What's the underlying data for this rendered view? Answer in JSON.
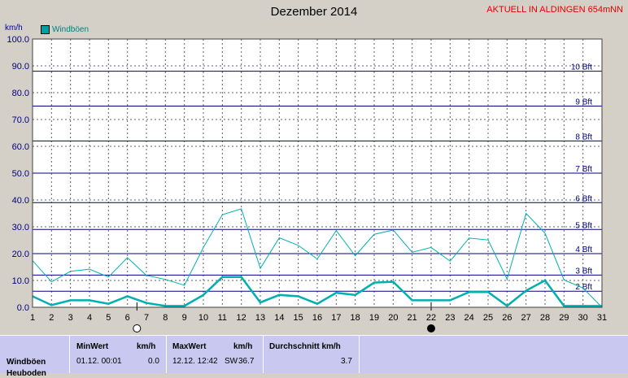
{
  "title": "Dezember 2014",
  "station_label": "AKTUELL IN ALDINGEN 654mNN",
  "unit_label": "km/h",
  "legend_label": "Windböen",
  "stats": {
    "row_label": "Windböen",
    "row_label_2": "Heuboden",
    "min_header": "MinWert",
    "min_unit": "km/h",
    "min_date": "01.12.  00:01",
    "min_value": "0.0",
    "max_header": "MaxWert",
    "max_unit": "km/h",
    "max_date": "12.12.  12:42",
    "max_dir": "SW",
    "max_value": "36.7",
    "avg_header": "Durchschnitt km/h",
    "avg_value": "3.7"
  },
  "chart_data": {
    "type": "line",
    "title": "Dezember 2014",
    "xlabel": "",
    "ylabel": "km/h",
    "ylim": [
      0,
      100
    ],
    "xlim": [
      1,
      31
    ],
    "y_ticks": [
      "0.0",
      "10.0",
      "20.0",
      "30.0",
      "40.0",
      "50.0",
      "60.0",
      "70.0",
      "80.0",
      "90.0",
      "100.0"
    ],
    "x_ticks": [
      "1",
      "2",
      "3",
      "4",
      "5",
      "6",
      "7",
      "8",
      "9",
      "10",
      "11",
      "12",
      "13",
      "14",
      "15",
      "16",
      "17",
      "18",
      "19",
      "20",
      "21",
      "22",
      "23",
      "24",
      "25",
      "26",
      "27",
      "28",
      "29",
      "30",
      "31"
    ],
    "beaufort": [
      {
        "label": "2 Bft",
        "value": 6
      },
      {
        "label": "3 Bft",
        "value": 12
      },
      {
        "label": "4 Bft",
        "value": 20
      },
      {
        "label": "5 Bft",
        "value": 29
      },
      {
        "label": "6 Bft",
        "value": 39
      },
      {
        "label": "7 Bft",
        "value": 50
      },
      {
        "label": "8 Bft",
        "value": 62
      },
      {
        "label": "9 Bft",
        "value": 75
      },
      {
        "label": "10 Bft",
        "value": 88
      }
    ],
    "grid": true,
    "series": [
      {
        "name": "Windböen",
        "style": "max-thin",
        "color": "#00b0b0",
        "x": [
          1,
          2,
          3,
          4,
          5,
          6,
          7,
          8,
          9,
          10,
          11,
          12,
          13,
          14,
          15,
          16,
          17,
          18,
          19,
          20,
          21,
          22,
          23,
          24,
          25,
          26,
          27,
          28,
          29,
          30,
          31
        ],
        "values": [
          17.4,
          9.5,
          13.4,
          14.2,
          11.3,
          18.5,
          11.9,
          10.4,
          8.2,
          22.3,
          34.5,
          36.7,
          14.5,
          25.9,
          23.1,
          18.0,
          28.6,
          19.2,
          27.2,
          28.8,
          20.5,
          22.3,
          17.2,
          25.8,
          25.1,
          10.5,
          35.0,
          27.6,
          10.2,
          7.2,
          0.0
        ]
      },
      {
        "name": "",
        "style": "avg-thick",
        "color": "#00b0b0",
        "x": [
          1,
          2,
          3,
          4,
          5,
          6,
          7,
          8,
          9,
          10,
          11,
          12,
          13,
          14,
          15,
          16,
          17,
          18,
          19,
          20,
          21,
          22,
          23,
          24,
          25,
          26,
          27,
          28,
          29,
          30,
          31
        ],
        "values": [
          4.1,
          0.8,
          2.6,
          2.6,
          1.3,
          4.1,
          1.6,
          0.5,
          0.5,
          4.6,
          11.3,
          11.3,
          1.8,
          4.6,
          4.1,
          1.3,
          5.4,
          4.6,
          9.2,
          9.5,
          2.6,
          2.6,
          2.6,
          5.7,
          5.7,
          0.5,
          6.2,
          10.0,
          0.5,
          0.5,
          0.5
        ]
      }
    ],
    "moon_phases": [
      {
        "day": 6.5,
        "phase": "full"
      },
      {
        "day": 22,
        "phase": "new"
      }
    ]
  }
}
